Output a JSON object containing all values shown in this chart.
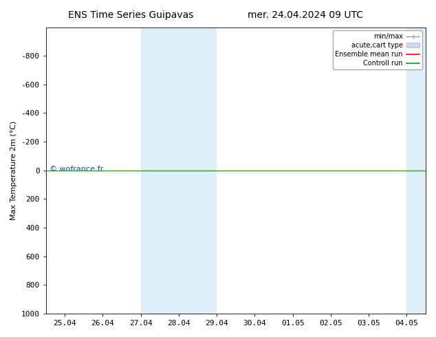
{
  "title": "ENS Time Series Guipavas",
  "title2": "mer. 24.04.2024 09 UTC",
  "ylabel": "Max Temperature 2m (°C)",
  "ylim": [
    -1000,
    1000
  ],
  "yticks": [
    -800,
    -600,
    -400,
    -200,
    0,
    200,
    400,
    600,
    800,
    1000
  ],
  "xtick_labels": [
    "25.04",
    "26.04",
    "27.04",
    "28.04",
    "29.04",
    "30.04",
    "01.05",
    "02.05",
    "03.05",
    "04.05"
  ],
  "bg_color": "#ffffff",
  "plot_bg_color": "#ffffff",
  "shaded_band1_x0": 2,
  "shaded_band1_x1": 4,
  "shaded_band2_x0": 9,
  "shaded_band2_x1": 9.5,
  "shaded_color": "#ddeef8",
  "green_line_y": 0,
  "red_line_y": 0,
  "copyright_text": "© wofrance.fr",
  "copyright_color": "#0055cc",
  "legend_items": [
    {
      "label": "min/max",
      "color": "#aaaaaa",
      "type": "errorbar"
    },
    {
      "label": "acute;cart type",
      "color": "#ccddef",
      "type": "bar"
    },
    {
      "label": "Ensemble mean run",
      "color": "#ff0000",
      "type": "line"
    },
    {
      "label": "Controll run",
      "color": "#00aa00",
      "type": "line"
    }
  ],
  "font_size": 8,
  "title_font_size": 10,
  "xlim": [
    -0.5,
    9.5
  ]
}
